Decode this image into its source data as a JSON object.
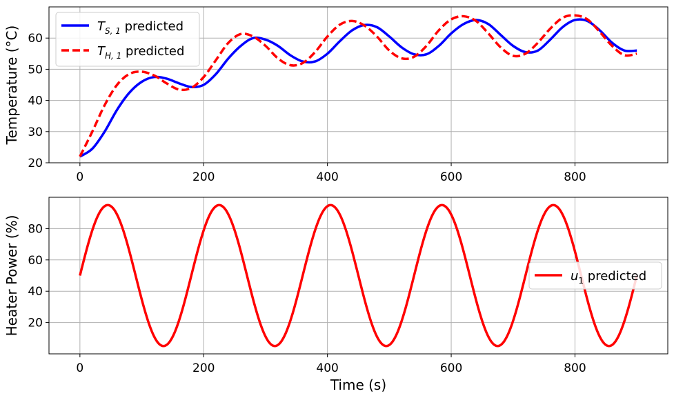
{
  "chart_data": [
    {
      "type": "line",
      "ylabel": "Temperature (°C)",
      "xlabel": "",
      "xlim": [
        -50,
        950
      ],
      "ylim": [
        20,
        70
      ],
      "xticks": [
        0,
        200,
        400,
        600,
        800
      ],
      "yticks": [
        20,
        30,
        40,
        50,
        60
      ],
      "xtick_labels": [
        "0",
        "200",
        "400",
        "600",
        "800"
      ],
      "ytick_labels": [
        "20",
        "30",
        "40",
        "50",
        "60"
      ],
      "grid": true,
      "legend_position": "upper-left",
      "series": [
        {
          "name": "T_S,1 predicted",
          "legend_main": "T",
          "legend_sub": "S, 1",
          "legend_rest": " predicted",
          "color": "#0000ff",
          "style": "solid",
          "x": [
            0,
            20,
            40,
            60,
            80,
            100,
            120,
            140,
            160,
            180,
            200,
            220,
            240,
            260,
            280,
            300,
            320,
            340,
            360,
            380,
            400,
            420,
            440,
            460,
            480,
            500,
            520,
            540,
            560,
            580,
            600,
            620,
            640,
            660,
            680,
            700,
            720,
            740,
            760,
            780,
            800,
            820,
            840,
            860,
            880,
            900
          ],
          "y": [
            22,
            24.5,
            30,
            37,
            42.5,
            46,
            47.5,
            47,
            45.5,
            44.3,
            45,
            48.5,
            53.5,
            57.5,
            60,
            59.5,
            57.5,
            54.5,
            52.5,
            52.5,
            55,
            59,
            62.5,
            64.2,
            63.5,
            60.5,
            57,
            54.8,
            54.8,
            57.5,
            61.5,
            64.5,
            65.8,
            64.5,
            61,
            57.5,
            55.5,
            56,
            59.5,
            63.5,
            65.8,
            65.5,
            62.5,
            58.5,
            56,
            56
          ]
        },
        {
          "name": "T_H,1 predicted",
          "legend_main": "T",
          "legend_sub": "H, 1",
          "legend_rest": " predicted",
          "color": "#ff0000",
          "style": "dashed",
          "x": [
            0,
            20,
            40,
            60,
            80,
            100,
            120,
            140,
            160,
            180,
            200,
            220,
            240,
            260,
            280,
            300,
            320,
            340,
            360,
            380,
            400,
            420,
            440,
            460,
            480,
            500,
            520,
            540,
            560,
            580,
            600,
            620,
            640,
            660,
            680,
            700,
            720,
            740,
            760,
            780,
            800,
            820,
            840,
            860,
            880,
            900
          ],
          "y": [
            22,
            30,
            38.5,
            45,
            48.5,
            49.2,
            48,
            45.5,
            43.5,
            44,
            47.5,
            53,
            58.5,
            61.3,
            60.5,
            57.5,
            53.5,
            51.3,
            52,
            55.5,
            60.5,
            64.3,
            65.5,
            64,
            60.5,
            56,
            53.5,
            54,
            57.5,
            62.5,
            66,
            67,
            65.5,
            61.5,
            57,
            54.3,
            55,
            58.5,
            63,
            66.5,
            67.3,
            66,
            62,
            57.5,
            54.5,
            55
          ]
        }
      ]
    },
    {
      "type": "line",
      "ylabel": "Heater Power (%)",
      "xlabel": "Time (s)",
      "xlim": [
        -50,
        950
      ],
      "ylim": [
        0,
        100
      ],
      "xticks": [
        0,
        200,
        400,
        600,
        800
      ],
      "yticks": [
        20,
        40,
        60,
        80
      ],
      "xtick_labels": [
        "0",
        "200",
        "400",
        "600",
        "800"
      ],
      "ytick_labels": [
        "20",
        "40",
        "60",
        "80"
      ],
      "grid": true,
      "legend_position": "center-right",
      "series": [
        {
          "name": "u_1 predicted",
          "legend_main": "u",
          "legend_sub": "1",
          "legend_rest": " predicted",
          "color": "#ff0000",
          "style": "solid",
          "function": "50 + 45*sin(2*pi*t/180)",
          "t_range": [
            0,
            900
          ]
        }
      ]
    }
  ]
}
